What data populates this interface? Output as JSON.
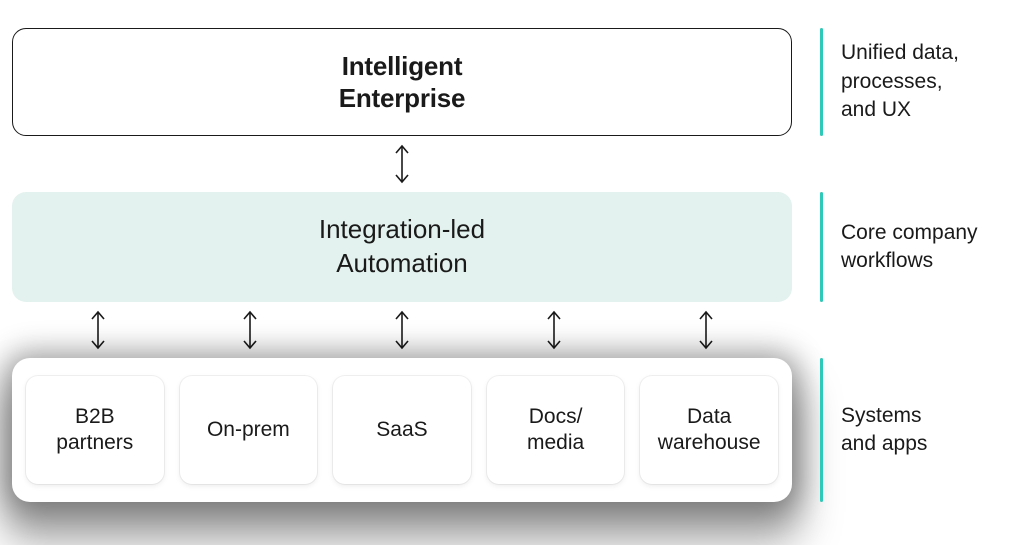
{
  "diagram": {
    "type": "layered-architecture",
    "background_color": "#ffffff",
    "text_color": "#1a1a1a",
    "accent_bar_color": "#2ec9b8",
    "arrow_color": "#1a1a1a",
    "tier1": {
      "title_line1": "Intelligent",
      "title_line2": "Enterprise",
      "border_color": "#1a1a1a",
      "background_color": "#ffffff",
      "border_radius": 14,
      "font_size": 26,
      "font_weight": 600,
      "side_label_line1": "Unified data,",
      "side_label_line2": "processes,",
      "side_label_line3": "and UX"
    },
    "tier2": {
      "title_line1": "Integration-led",
      "title_line2": "Automation",
      "background_color": "#e3f2ee",
      "border_radius": 14,
      "font_size": 26,
      "font_weight": 400,
      "side_label_line1": "Core company",
      "side_label_line2": "workflows"
    },
    "tier3": {
      "container_background": "#ffffff",
      "container_border_radius": 18,
      "card_border_radius": 12,
      "card_font_size": 21,
      "cards": [
        {
          "line1": "B2B",
          "line2": "partners"
        },
        {
          "line1": "On-prem",
          "line2": ""
        },
        {
          "line1": "SaaS",
          "line2": ""
        },
        {
          "line1": "Docs/",
          "line2": "media"
        },
        {
          "line1": "Data",
          "line2": "warehouse"
        }
      ],
      "side_label_line1": "Systems",
      "side_label_line2": "and apps"
    },
    "arrows": {
      "row1_count": 1,
      "row2_count": 5,
      "stroke_width": 1.6,
      "height": 44
    }
  }
}
